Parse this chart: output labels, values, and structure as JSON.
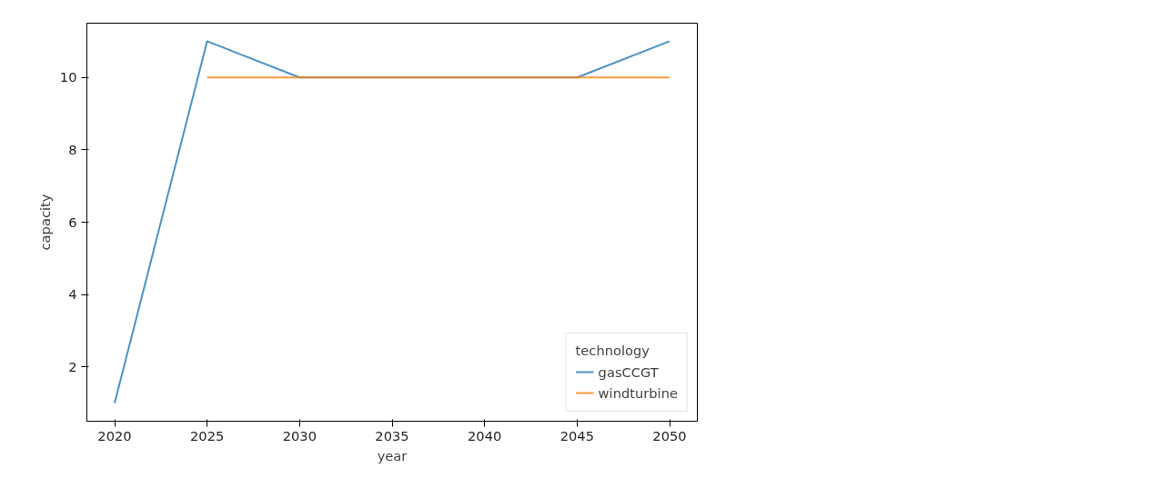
{
  "chart_data": {
    "type": "line",
    "xlabel": "year",
    "ylabel": "capacity",
    "legend_title": "technology",
    "xlim": [
      2018.5,
      2051.5
    ],
    "ylim": [
      0.5,
      11.5
    ],
    "xticks": [
      2020,
      2025,
      2030,
      2035,
      2040,
      2045,
      2050
    ],
    "yticks": [
      2,
      4,
      6,
      8,
      10
    ],
    "grid": false,
    "legend": "bottom right",
    "series": [
      {
        "name": "gasCCGT",
        "color": "#1f77b4",
        "x": [
          2020,
          2025,
          2030,
          2035,
          2040,
          2045,
          2050
        ],
        "values": [
          1,
          11,
          10,
          10,
          10,
          10,
          11
        ]
      },
      {
        "name": "windturbine",
        "color": "#ff7f0e",
        "x": [
          2025,
          2030,
          2035,
          2040,
          2045,
          2050
        ],
        "values": [
          10,
          10,
          10,
          10,
          10,
          10
        ]
      }
    ]
  }
}
